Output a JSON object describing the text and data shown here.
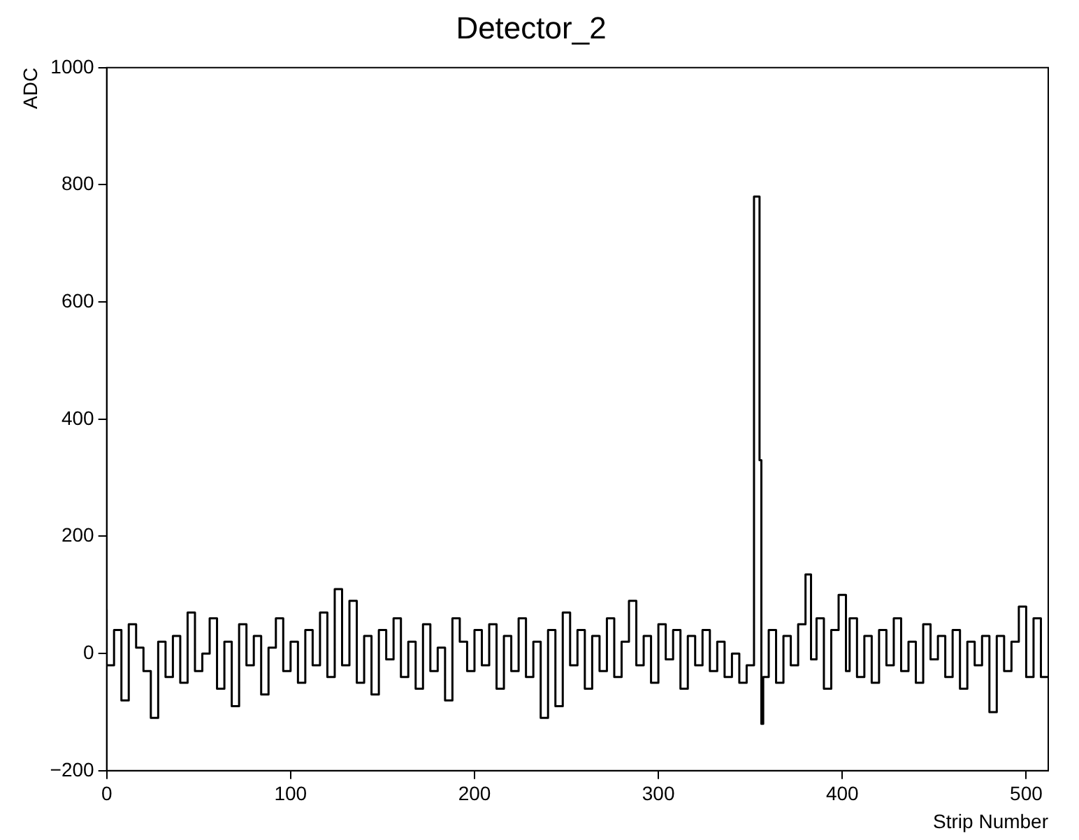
{
  "chart_data": {
    "type": "step",
    "title": "Detector_2",
    "xlabel": "Strip Number",
    "ylabel": "ADC",
    "x": [
      0,
      4,
      8,
      12,
      16,
      20,
      24,
      28,
      32,
      36,
      40,
      44,
      48,
      52,
      56,
      60,
      64,
      68,
      72,
      76,
      80,
      84,
      88,
      92,
      96,
      100,
      104,
      108,
      112,
      116,
      120,
      124,
      128,
      132,
      136,
      140,
      144,
      148,
      152,
      156,
      160,
      164,
      168,
      172,
      176,
      180,
      184,
      188,
      192,
      196,
      200,
      204,
      208,
      212,
      216,
      220,
      224,
      228,
      232,
      236,
      240,
      244,
      248,
      252,
      256,
      260,
      264,
      268,
      272,
      276,
      280,
      284,
      288,
      292,
      296,
      300,
      304,
      308,
      312,
      316,
      320,
      324,
      328,
      332,
      336,
      340,
      344,
      348,
      352,
      355,
      356,
      357,
      360,
      364,
      368,
      372,
      376,
      380,
      383,
      386,
      390,
      394,
      398,
      402,
      404,
      408,
      412,
      416,
      420,
      424,
      428,
      432,
      436,
      440,
      444,
      448,
      452,
      456,
      460,
      464,
      468,
      472,
      476,
      480,
      484,
      488,
      492,
      496,
      500,
      504,
      508,
      512
    ],
    "series": [
      {
        "color": "#000000",
        "values": [
          75,
          -20,
          40,
          -80,
          50,
          10,
          -30,
          -110,
          20,
          -40,
          30,
          -50,
          70,
          -30,
          0,
          60,
          -60,
          20,
          -90,
          50,
          -20,
          30,
          -70,
          10,
          60,
          -30,
          20,
          -50,
          40,
          -20,
          70,
          -40,
          110,
          -20,
          90,
          -50,
          30,
          -70,
          40,
          -10,
          60,
          -40,
          20,
          -60,
          50,
          -30,
          10,
          -80,
          60,
          20,
          -30,
          40,
          -20,
          50,
          -60,
          30,
          -30,
          60,
          -40,
          20,
          -110,
          40,
          -90,
          70,
          -20,
          40,
          -60,
          30,
          -30,
          60,
          -40,
          20,
          90,
          -20,
          30,
          -50,
          50,
          -10,
          40,
          -60,
          30,
          -20,
          40,
          -30,
          20,
          -40,
          0,
          -50,
          -20,
          780,
          330,
          -120,
          -40,
          40,
          -50,
          30,
          -20,
          50,
          135,
          -10,
          60,
          -60,
          40,
          100,
          -30,
          60,
          -40,
          30,
          -50,
          40,
          -20,
          60,
          -30,
          20,
          -50,
          50,
          -10,
          30,
          -40,
          40,
          -60,
          20,
          -20,
          30,
          -100,
          30,
          -30,
          20,
          80,
          -40,
          60,
          -40
        ]
      }
    ],
    "xlim": [
      0,
      512
    ],
    "xticks": [
      0,
      100,
      200,
      300,
      400,
      500
    ],
    "ylim": [
      -200,
      1000
    ],
    "yticks": [
      {
        "value": -200,
        "label": "−200"
      },
      0,
      200,
      400,
      600,
      800,
      1000
    ],
    "grid": false,
    "legend": false,
    "marker": "none",
    "line_style": "solid"
  }
}
